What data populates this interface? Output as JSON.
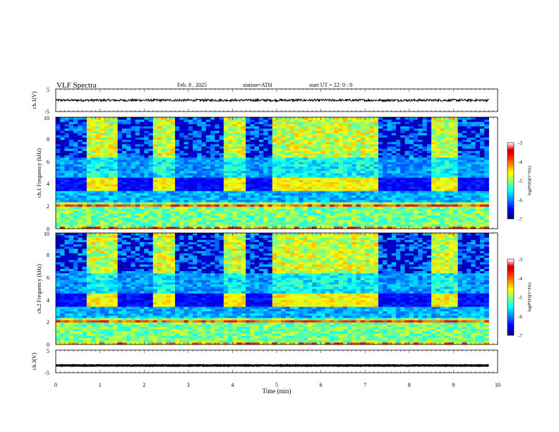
{
  "header": {
    "title": "VLF Spectra",
    "date": "Feb. 8 , 2025",
    "station": "station=ATH",
    "start": "start UT =  22: 0  : 0"
  },
  "chart_data": [
    {
      "type": "line",
      "name": "ch1-waveform",
      "ylabel": "ch.1(V)",
      "yticks": [
        "5",
        "-5"
      ],
      "ylim": [
        -5,
        5
      ],
      "level_v": 0.0,
      "noise_v": 0.5
    },
    {
      "type": "heatmap",
      "name": "ch1-spectrogram",
      "ylabel": "ch.1 Frequency (kHz)",
      "yticks": [
        "0",
        "2",
        "4",
        "6",
        "8",
        "10"
      ],
      "ylim": [
        0,
        10
      ],
      "xlim": [
        0,
        10
      ],
      "bright_segments_min": [
        [
          0.75,
          1.35
        ],
        [
          2.25,
          2.65
        ],
        [
          3.8,
          4.3
        ],
        [
          4.9,
          7.3
        ],
        [
          8.55,
          9.1
        ]
      ],
      "band_khz": [
        3.5,
        4.5
      ],
      "colorbar": {
        "label": "log(PSD)(V²/Hz)",
        "ticks": [
          "-3",
          "-4",
          "-5",
          "-6",
          "-7"
        ],
        "range": [
          -7,
          -3
        ]
      }
    },
    {
      "type": "heatmap",
      "name": "ch2-spectrogram",
      "ylabel": "ch.2 Frequency (kHz)",
      "yticks": [
        "0",
        "2",
        "4",
        "6",
        "8",
        "10"
      ],
      "ylim": [
        0,
        10
      ],
      "xlim": [
        0,
        10
      ],
      "bright_segments_min": [
        [
          0.75,
          1.35
        ],
        [
          2.25,
          2.65
        ],
        [
          3.8,
          4.3
        ],
        [
          4.9,
          7.3
        ],
        [
          8.55,
          9.1
        ]
      ],
      "band_khz": [
        3.5,
        4.5
      ],
      "colorbar": {
        "label": "log(PSD)(V²/Hz)",
        "ticks": [
          "-3",
          "-4",
          "-5",
          "-6",
          "-7"
        ],
        "range": [
          -7,
          -3
        ]
      }
    },
    {
      "type": "line",
      "name": "ch3-waveform",
      "ylabel": "ch.3(V)",
      "yticks": [
        "5",
        "-5"
      ],
      "ylim": [
        -5,
        5
      ],
      "level_v": -1.8,
      "noise_v": 0.12
    }
  ],
  "xaxis": {
    "label": "Time (min)",
    "ticks": [
      "0",
      "1",
      "2",
      "3",
      "4",
      "5",
      "6",
      "7",
      "8",
      "9",
      "10"
    ],
    "xlim": [
      0,
      10
    ],
    "data_end_min": 9.8
  }
}
